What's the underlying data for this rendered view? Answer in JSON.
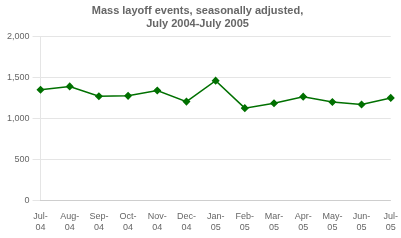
{
  "chart_data": {
    "type": "line",
    "title": "Mass layoff events, seasonally adjusted,\nJuly 2004-July 2005",
    "categories": [
      "Jul-\n04",
      "Aug-\n04",
      "Sep-\n04",
      "Oct-\n04",
      "Nov-\n04",
      "Dec-\n04",
      "Jan-\n05",
      "Feb-\n05",
      "Mar-\n05",
      "Apr-\n05",
      "May-\n05",
      "Jun-\n05",
      "Jul-\n05"
    ],
    "values": [
      1350,
      1390,
      1270,
      1275,
      1340,
      1205,
      1460,
      1125,
      1185,
      1265,
      1200,
      1170,
      1250
    ],
    "color": "#007000",
    "marker": "diamond",
    "ylim": [
      0,
      2000
    ],
    "yticks": [
      0,
      500,
      {
        "value": 1000,
        "label": "1,000"
      },
      {
        "value": 1500,
        "label": "1,500"
      },
      {
        "value": 2000,
        "label": "2,000"
      }
    ],
    "grid": true
  }
}
